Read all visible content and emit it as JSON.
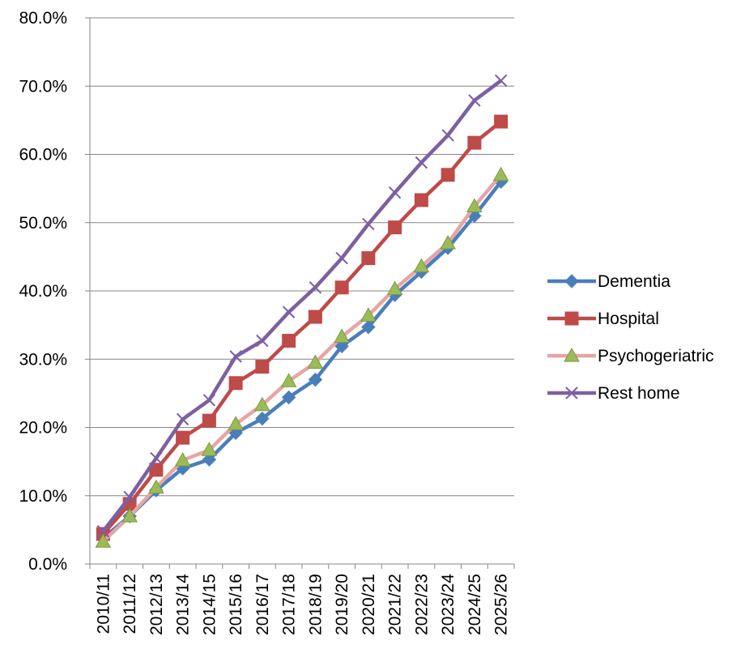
{
  "chart_data": {
    "type": "line",
    "title": "",
    "xlabel": "",
    "ylabel": "",
    "x": [
      "2010/11",
      "2011/12",
      "2012/13",
      "2013/14",
      "2014/15",
      "2015/16",
      "2016/17",
      "2017/18",
      "2018/19",
      "2019/20",
      "2020/21",
      "2021/22",
      "2022/23",
      "2023/24",
      "2024/25",
      "2025/26"
    ],
    "ylim": [
      0,
      80
    ],
    "yticks": [
      0,
      10,
      20,
      30,
      40,
      50,
      60,
      70,
      80
    ],
    "ytick_labels": [
      "0.0%",
      "10.0%",
      "20.0%",
      "30.0%",
      "40.0%",
      "50.0%",
      "60.0%",
      "70.0%",
      "80.0%"
    ],
    "grid": "horizontal",
    "legend_position": "right",
    "series": [
      {
        "name": "Dementia",
        "color": "#4A7EBB",
        "marker": "diamond",
        "values": [
          3.8,
          7.0,
          10.8,
          14.0,
          15.3,
          19.2,
          21.3,
          24.4,
          27.0,
          31.9,
          34.7,
          39.4,
          42.8,
          46.3,
          51.0,
          56.0
        ]
      },
      {
        "name": "Hospital",
        "color": "#BE4B48",
        "marker": "square",
        "values": [
          4.4,
          8.8,
          13.8,
          18.5,
          21.0,
          26.5,
          28.9,
          32.7,
          36.2,
          40.5,
          44.8,
          49.3,
          53.3,
          57.0,
          61.7,
          64.8
        ]
      },
      {
        "name": "Psychogeriatric",
        "color": "#E6A5A4",
        "marker": "triangle",
        "markerColor": "#9BBB59",
        "values": [
          3.3,
          7.0,
          11.2,
          15.2,
          16.7,
          20.5,
          23.3,
          26.8,
          29.5,
          33.3,
          36.4,
          40.3,
          43.6,
          47.0,
          52.4,
          57.0
        ]
      },
      {
        "name": "Rest home",
        "color": "#7D60A0",
        "marker": "x",
        "values": [
          4.8,
          9.8,
          15.5,
          21.2,
          24.0,
          30.4,
          32.7,
          36.9,
          40.5,
          44.8,
          49.8,
          54.4,
          58.8,
          62.8,
          67.9,
          70.8
        ]
      }
    ]
  }
}
